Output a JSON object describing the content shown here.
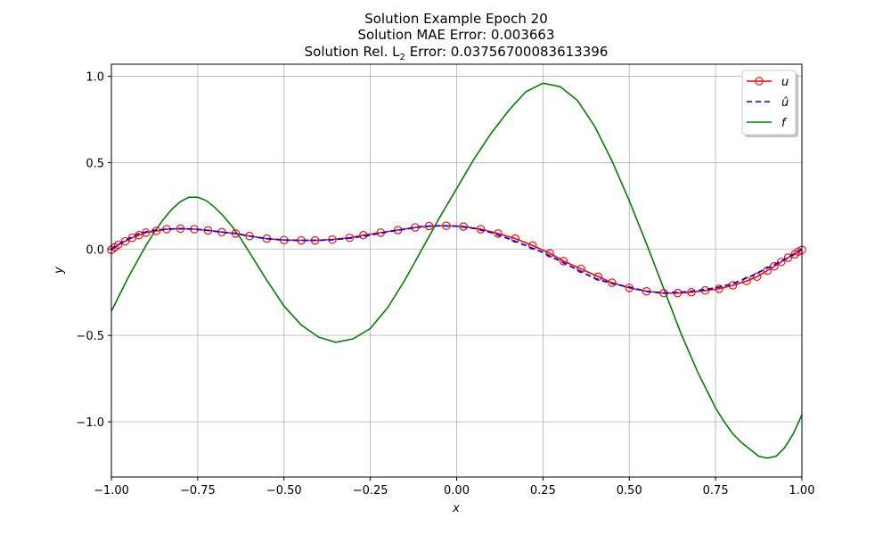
{
  "chart_data": {
    "type": "line",
    "title_lines": [
      "Solution Example Epoch 20",
      "Solution MAE Error: 0.003663",
      "Solution Rel. L",
      "2",
      " Error: 0.03756700083613396"
    ],
    "xlabel": "x",
    "ylabel": "y",
    "xlim": [
      -1.0,
      1.0
    ],
    "ylim": [
      -1.32,
      1.07
    ],
    "xticks": [
      -1.0,
      -0.75,
      -0.5,
      -0.25,
      0.0,
      0.25,
      0.5,
      0.75,
      1.0
    ],
    "xtick_labels": [
      "−1.00",
      "−0.75",
      "−0.50",
      "−0.25",
      "0.00",
      "0.25",
      "0.50",
      "0.75",
      "1.00"
    ],
    "yticks": [
      -1.0,
      -0.5,
      0.0,
      0.5,
      1.0
    ],
    "ytick_labels": [
      "−1.0",
      "−0.5",
      "0.0",
      "0.5",
      "1.0"
    ],
    "grid": true,
    "legend_position": "top-right",
    "series": [
      {
        "name": "u",
        "color": "#ff0000",
        "style": "solid-with-circles",
        "x": [
          -1.0,
          -0.99,
          -0.98,
          -0.96,
          -0.94,
          -0.92,
          -0.9,
          -0.87,
          -0.84,
          -0.8,
          -0.76,
          -0.72,
          -0.68,
          -0.64,
          -0.6,
          -0.55,
          -0.5,
          -0.45,
          -0.41,
          -0.36,
          -0.31,
          -0.27,
          -0.22,
          -0.17,
          -0.12,
          -0.08,
          -0.03,
          0.02,
          0.07,
          0.12,
          0.17,
          0.22,
          0.27,
          0.31,
          0.36,
          0.41,
          0.45,
          0.5,
          0.55,
          0.6,
          0.64,
          0.68,
          0.72,
          0.76,
          0.8,
          0.84,
          0.87,
          0.9,
          0.92,
          0.94,
          0.96,
          0.98,
          0.99,
          1.0
        ],
        "y": [
          -0.005,
          0.01,
          0.025,
          0.045,
          0.065,
          0.08,
          0.095,
          0.105,
          0.115,
          0.118,
          0.115,
          0.108,
          0.098,
          0.09,
          0.075,
          0.06,
          0.052,
          0.05,
          0.05,
          0.055,
          0.065,
          0.08,
          0.095,
          0.11,
          0.125,
          0.133,
          0.135,
          0.13,
          0.115,
          0.09,
          0.06,
          0.02,
          -0.025,
          -0.07,
          -0.115,
          -0.16,
          -0.195,
          -0.225,
          -0.245,
          -0.255,
          -0.255,
          -0.25,
          -0.24,
          -0.23,
          -0.21,
          -0.185,
          -0.16,
          -0.125,
          -0.1,
          -0.075,
          -0.05,
          -0.03,
          -0.015,
          -0.005
        ]
      },
      {
        "name": "û",
        "color": "#0000ff",
        "style": "dashed",
        "x": [
          -1.0,
          -0.96,
          -0.92,
          -0.88,
          -0.84,
          -0.8,
          -0.76,
          -0.72,
          -0.68,
          -0.64,
          -0.6,
          -0.55,
          -0.5,
          -0.45,
          -0.4,
          -0.35,
          -0.3,
          -0.25,
          -0.2,
          -0.15,
          -0.1,
          -0.05,
          0.0,
          0.05,
          0.1,
          0.15,
          0.2,
          0.25,
          0.3,
          0.35,
          0.4,
          0.45,
          0.5,
          0.55,
          0.6,
          0.65,
          0.7,
          0.75,
          0.8,
          0.85,
          0.9,
          0.95,
          1.0
        ],
        "y": [
          0.0,
          0.05,
          0.09,
          0.108,
          0.115,
          0.118,
          0.115,
          0.108,
          0.098,
          0.09,
          0.075,
          0.06,
          0.052,
          0.05,
          0.05,
          0.055,
          0.065,
          0.08,
          0.1,
          0.115,
          0.13,
          0.135,
          0.132,
          0.12,
          0.095,
          0.06,
          0.02,
          -0.02,
          -0.07,
          -0.12,
          -0.17,
          -0.2,
          -0.22,
          -0.245,
          -0.255,
          -0.25,
          -0.24,
          -0.225,
          -0.2,
          -0.16,
          -0.11,
          -0.06,
          0.0
        ]
      },
      {
        "name": "f",
        "color": "#008000",
        "style": "solid",
        "x": [
          -1.0,
          -0.975,
          -0.95,
          -0.925,
          -0.9,
          -0.875,
          -0.85,
          -0.825,
          -0.8,
          -0.775,
          -0.75,
          -0.725,
          -0.7,
          -0.675,
          -0.65,
          -0.625,
          -0.6,
          -0.575,
          -0.55,
          -0.5,
          -0.45,
          -0.4,
          -0.35,
          -0.3,
          -0.25,
          -0.2,
          -0.15,
          -0.1,
          -0.05,
          0.0,
          0.05,
          0.1,
          0.15,
          0.2,
          0.25,
          0.3,
          0.35,
          0.4,
          0.45,
          0.5,
          0.55,
          0.6,
          0.65,
          0.7,
          0.75,
          0.775,
          0.8,
          0.825,
          0.85,
          0.875,
          0.9,
          0.925,
          0.95,
          0.975,
          1.0
        ],
        "y": [
          -0.36,
          -0.26,
          -0.16,
          -0.07,
          0.02,
          0.1,
          0.17,
          0.23,
          0.275,
          0.3,
          0.3,
          0.28,
          0.24,
          0.19,
          0.13,
          0.06,
          -0.02,
          -0.1,
          -0.18,
          -0.33,
          -0.44,
          -0.51,
          -0.54,
          -0.52,
          -0.46,
          -0.34,
          -0.18,
          0.0,
          0.18,
          0.35,
          0.52,
          0.67,
          0.8,
          0.91,
          0.96,
          0.94,
          0.86,
          0.71,
          0.51,
          0.28,
          0.03,
          -0.23,
          -0.49,
          -0.72,
          -0.92,
          -1.0,
          -1.07,
          -1.12,
          -1.16,
          -1.2,
          -1.21,
          -1.2,
          -1.15,
          -1.07,
          -0.96
        ]
      }
    ]
  }
}
